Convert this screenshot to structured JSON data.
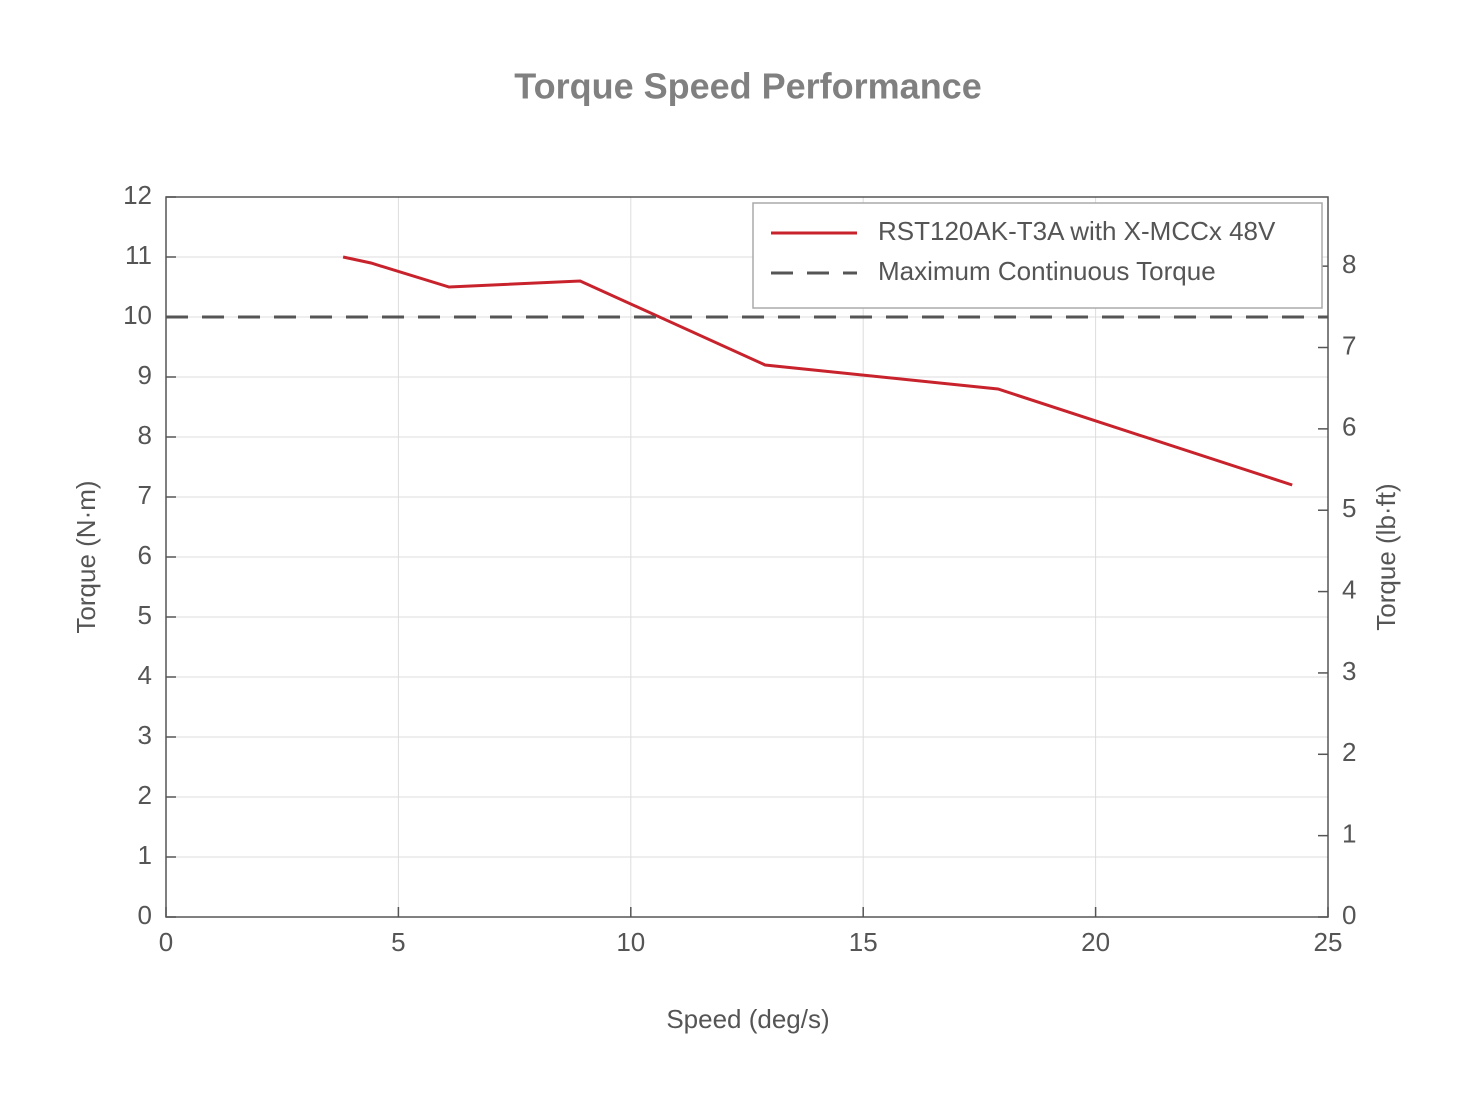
{
  "chart_data": {
    "type": "line",
    "title": "Torque Speed Performance",
    "xlabel": "Speed (deg/s)",
    "ylabel": "Torque (N·m)",
    "y2label": "Torque (lb·ft)",
    "series": [
      {
        "name": "RST120AK-T3A with X-MCCx 48V",
        "color": "#c8232c",
        "dash": false,
        "x": [
          3.81,
          4.41,
          6.09,
          8.91,
          12.89,
          17.9,
          24.23
        ],
        "values": [
          11.0,
          10.9,
          10.5,
          10.6,
          9.2,
          8.8,
          7.2
        ]
      },
      {
        "name": "Maximum Continuous Torque",
        "color": "#555555",
        "dash": true,
        "x": [
          0,
          25
        ],
        "values": [
          10,
          10
        ]
      }
    ],
    "xlim": [
      0,
      25
    ],
    "xticks": [
      0,
      5,
      10,
      15,
      20,
      25
    ],
    "ylim": [
      0,
      12
    ],
    "yticks": [
      0,
      1,
      2,
      3,
      4,
      5,
      6,
      7,
      8,
      9,
      10,
      11,
      12
    ],
    "y2lim": [
      0,
      8.85
    ],
    "y2ticks": [
      0,
      1,
      2,
      3,
      4,
      5,
      6,
      7,
      8
    ],
    "grid": true,
    "legend": "upper right"
  }
}
